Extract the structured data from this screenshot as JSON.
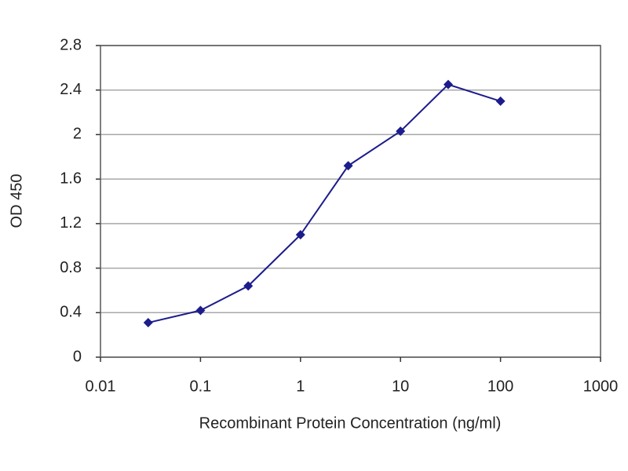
{
  "chart_data": {
    "type": "line",
    "xlabel": "Recombinant Protein Concentration (ng/ml)",
    "ylabel": "OD 450",
    "x": [
      0.03,
      0.1,
      0.3,
      1,
      3,
      10,
      30,
      100
    ],
    "series": [
      {
        "color": "#1c1c8c",
        "values": [
          0.31,
          0.42,
          0.64,
          1.1,
          1.72,
          2.03,
          2.45,
          2.3
        ]
      }
    ],
    "xscale": "log",
    "xlim": [
      0.01,
      1000
    ],
    "xticks": [
      0.01,
      0.1,
      1,
      10,
      100,
      1000
    ],
    "ylim": [
      0,
      2.8
    ],
    "yticks": [
      0,
      0.4,
      0.8,
      1.2,
      1.6,
      2,
      2.4,
      2.8
    ],
    "grid": true
  }
}
